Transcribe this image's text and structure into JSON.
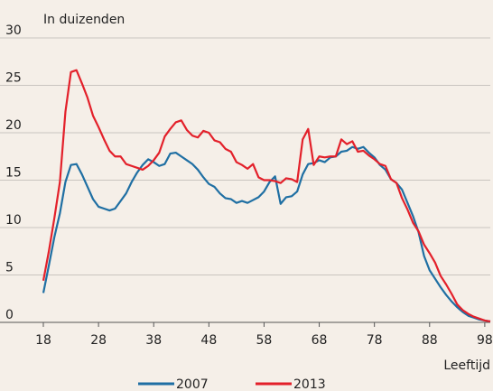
{
  "chart_data": {
    "type": "line",
    "title": "In duizenden",
    "x_label": "Leeftijd",
    "x": [
      18,
      19,
      20,
      21,
      22,
      23,
      24,
      25,
      26,
      27,
      28,
      29,
      30,
      31,
      32,
      33,
      34,
      35,
      36,
      37,
      38,
      39,
      40,
      41,
      42,
      43,
      44,
      45,
      46,
      47,
      48,
      49,
      50,
      51,
      52,
      53,
      54,
      55,
      56,
      57,
      58,
      59,
      60,
      61,
      62,
      63,
      64,
      65,
      66,
      67,
      68,
      69,
      70,
      71,
      72,
      73,
      74,
      75,
      76,
      77,
      78,
      79,
      80,
      81,
      82,
      83,
      84,
      85,
      86,
      87,
      88,
      89,
      90,
      91,
      92,
      93,
      94,
      95,
      96,
      97,
      98,
      99
    ],
    "series": [
      {
        "name": "2007",
        "color": "#1f6fa3",
        "values": [
          3.1,
          6,
          9,
          11.5,
          14.8,
          16.6,
          16.7,
          15.6,
          14.3,
          13,
          12.2,
          12,
          11.8,
          12,
          12.8,
          13.6,
          14.8,
          15.8,
          16.6,
          17.2,
          16.9,
          16.5,
          16.7,
          17.8,
          17.9,
          17.5,
          17.1,
          16.7,
          16.1,
          15.3,
          14.6,
          14.3,
          13.6,
          13.1,
          13,
          12.6,
          12.8,
          12.6,
          12.9,
          13.2,
          13.8,
          14.8,
          15.4,
          12.5,
          13.2,
          13.3,
          13.8,
          15.6,
          16.7,
          16.8,
          17.1,
          16.9,
          17.4,
          17.5,
          18,
          18.1,
          18.5,
          18.3,
          18.5,
          17.9,
          17.4,
          16.6,
          16.1,
          15.1,
          14.7,
          14,
          12.6,
          11.2,
          9.5,
          7,
          5.5,
          4.6,
          3.7,
          2.9,
          2.2,
          1.6,
          1.1,
          0.7,
          0.5,
          0.3,
          0.2,
          0.1
        ]
      },
      {
        "name": "2013",
        "color": "#e3202a",
        "values": [
          4.4,
          7.5,
          11,
          14.8,
          22.2,
          26.4,
          26.6,
          25.2,
          23.7,
          21.8,
          20.6,
          19.3,
          18.1,
          17.5,
          17.5,
          16.7,
          16.5,
          16.3,
          16.1,
          16.5,
          17.1,
          17.9,
          19.6,
          20.4,
          21.1,
          21.3,
          20.3,
          19.7,
          19.5,
          20.2,
          20,
          19.2,
          19,
          18.3,
          18,
          16.9,
          16.6,
          16.2,
          16.7,
          15.3,
          15,
          15,
          14.9,
          14.7,
          15.2,
          15.1,
          14.8,
          19.3,
          20.4,
          16.6,
          17.5,
          17.4,
          17.5,
          17.5,
          19.3,
          18.8,
          19.1,
          18,
          18.1,
          17.6,
          17.2,
          16.7,
          16.5,
          15.1,
          14.7,
          13.1,
          11.9,
          10.5,
          9.6,
          8.2,
          7.3,
          6.3,
          4.9,
          4,
          3,
          1.9,
          1.3,
          0.9,
          0.6,
          0.4,
          0.2,
          0.1
        ]
      }
    ],
    "xlim": [
      18,
      99
    ],
    "xticks": [
      18,
      28,
      38,
      48,
      58,
      68,
      78,
      88,
      98
    ],
    "ylim": [
      0,
      30
    ],
    "yticks": [
      0,
      5,
      10,
      15,
      20,
      25,
      30
    ],
    "grid": true,
    "legend": "bottom"
  }
}
